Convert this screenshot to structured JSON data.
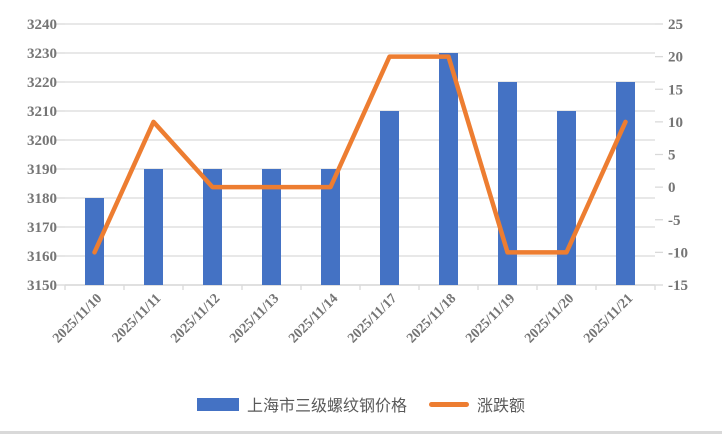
{
  "chart_data": {
    "type": "bar",
    "subtype": "combo-bar-line",
    "categories": [
      "2025/11/10",
      "2025/11/11",
      "2025/11/12",
      "2025/11/13",
      "2025/11/14",
      "2025/11/17",
      "2025/11/18",
      "2025/11/19",
      "2025/11/20",
      "2025/11/21"
    ],
    "series": [
      {
        "name": "上海市三级螺纹钢价格",
        "type": "bar",
        "axis": "left",
        "color": "#4472C4",
        "values": [
          3180,
          3190,
          3190,
          3190,
          3190,
          3210,
          3230,
          3220,
          3210,
          3220
        ]
      },
      {
        "name": "涨跌额",
        "type": "line",
        "axis": "right",
        "color": "#ED7D31",
        "values": [
          -10,
          10,
          0,
          0,
          0,
          20,
          20,
          -10,
          -10,
          10
        ]
      }
    ],
    "left_axis": {
      "min": 3150,
      "max": 3240,
      "step": 10,
      "tick_labels": [
        "3150",
        "3160",
        "3170",
        "3180",
        "3190",
        "3200",
        "3210",
        "3220",
        "3230",
        "3240"
      ]
    },
    "right_axis": {
      "min": -15,
      "max": 25,
      "step": 5,
      "tick_labels": [
        "-15",
        "-10",
        "-5",
        "0",
        "5",
        "10",
        "15",
        "20",
        "25"
      ]
    },
    "grid": true,
    "legend_position": "bottom"
  },
  "styles": {
    "bar_color": "#4472C4",
    "line_color": "#ED7D31",
    "gridline_color": "#D9D9D9",
    "axis_line_color": "#D9D9D9",
    "axis_label_color": "#757575",
    "legend_text_color": "#595959",
    "background": "#FFFFFF"
  }
}
